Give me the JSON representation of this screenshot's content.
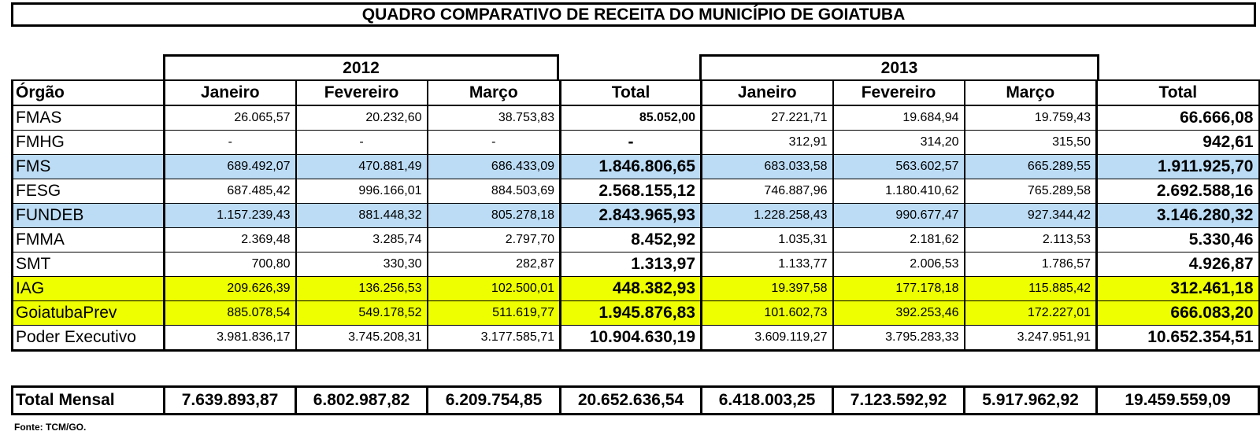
{
  "title": "QUADRO COMPARATIVO DE RECEITA DO MUNICÍPIO DE GOIATUBA",
  "years": [
    "2012",
    "2013"
  ],
  "headers": [
    "Órgão",
    "Janeiro",
    "Fevereiro",
    "Março",
    "Total",
    "Janeiro",
    "Fevereiro",
    "Março",
    "Total"
  ],
  "colors": {
    "blue_row": "#bcdcf5",
    "yellow_row": "#eeff00"
  },
  "rows": [
    {
      "org": "FMAS",
      "highlight": "",
      "values": [
        "26.065,57",
        "20.232,60",
        "38.753,83",
        "85.052,00",
        "27.221,71",
        "19.684,94",
        "19.759,43",
        "66.666,08"
      ]
    },
    {
      "org": "FMHG",
      "highlight": "",
      "values": [
        "-",
        "-",
        "-",
        "-",
        "312,91",
        "314,20",
        "315,50",
        "942,61"
      ]
    },
    {
      "org": "FMS",
      "highlight": "blue",
      "values": [
        "689.492,07",
        "470.881,49",
        "686.433,09",
        "1.846.806,65",
        "683.033,58",
        "563.602,57",
        "665.289,55",
        "1.911.925,70"
      ]
    },
    {
      "org": "FESG",
      "highlight": "",
      "values": [
        "687.485,42",
        "996.166,01",
        "884.503,69",
        "2.568.155,12",
        "746.887,96",
        "1.180.410,62",
        "765.289,58",
        "2.692.588,16"
      ]
    },
    {
      "org": "FUNDEB",
      "highlight": "blue",
      "values": [
        "1.157.239,43",
        "881.448,32",
        "805.278,18",
        "2.843.965,93",
        "1.228.258,43",
        "990.677,47",
        "927.344,42",
        "3.146.280,32"
      ]
    },
    {
      "org": "FMMA",
      "highlight": "",
      "values": [
        "2.369,48",
        "3.285,74",
        "2.797,70",
        "8.452,92",
        "1.035,31",
        "2.181,62",
        "2.113,53",
        "5.330,46"
      ]
    },
    {
      "org": "SMT",
      "highlight": "",
      "values": [
        "700,80",
        "330,30",
        "282,87",
        "1.313,97",
        "1.133,77",
        "2.006,53",
        "1.786,57",
        "4.926,87"
      ]
    },
    {
      "org": "IAG",
      "highlight": "yellow",
      "values": [
        "209.626,39",
        "136.256,53",
        "102.500,01",
        "448.382,93",
        "19.397,58",
        "177.178,18",
        "115.885,42",
        "312.461,18"
      ]
    },
    {
      "org": "GoiatubaPrev",
      "highlight": "yellow",
      "values": [
        "885.078,54",
        "549.178,52",
        "511.619,77",
        "1.945.876,83",
        "101.602,73",
        "392.253,46",
        "172.227,01",
        "666.083,20"
      ]
    },
    {
      "org": "Poder Executivo",
      "highlight": "",
      "values": [
        "3.981.836,17",
        "3.745.208,31",
        "3.177.585,71",
        "10.904.630,19",
        "3.609.119,27",
        "3.795.283,33",
        "3.247.951,91",
        "10.652.354,51"
      ]
    }
  ],
  "total_row": {
    "label": "Total Mensal",
    "values": [
      "7.639.893,87",
      "6.802.987,82",
      "6.209.754,85",
      "20.652.636,54",
      "6.418.003,25",
      "7.123.592,92",
      "5.917.962,92",
      "19.459.559,09"
    ]
  },
  "source": "Fonte: TCM/GO."
}
